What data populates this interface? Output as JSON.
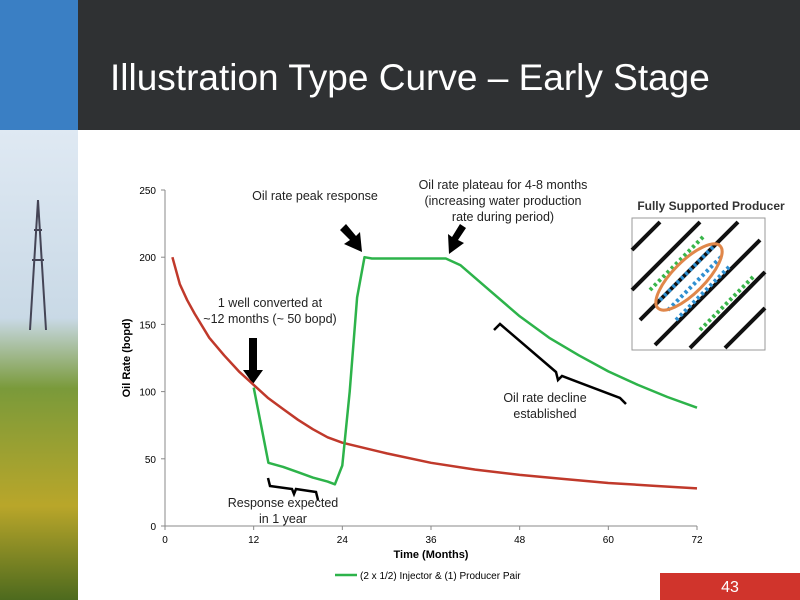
{
  "header": {
    "title": "Illustration Type Curve – Early Stage"
  },
  "chart_data": {
    "type": "line",
    "ylabel": "Oil Rate (bopd)",
    "xlabel": "Time (Months)",
    "xlim": [
      0,
      72
    ],
    "xticks": [
      0,
      12,
      24,
      36,
      48,
      60,
      72
    ],
    "ylim": [
      0,
      250
    ],
    "yticks": [
      0,
      50,
      100,
      150,
      200,
      250
    ],
    "series": [
      {
        "color": "#c0392b",
        "x": [
          1,
          2,
          3,
          4,
          6,
          8,
          10,
          12,
          14,
          16,
          18,
          20,
          22,
          24,
          30,
          36,
          42,
          48,
          54,
          60,
          66,
          72
        ],
        "values": [
          200,
          180,
          168,
          158,
          140,
          127,
          115,
          105,
          95,
          87,
          79,
          72,
          66,
          62,
          54,
          47,
          42,
          38,
          35,
          32,
          30,
          28
        ]
      },
      {
        "name": "(2 x 1/2) Injector & (1) Producer Pair",
        "color": "#2db34a",
        "x": [
          12,
          13,
          14,
          16,
          18,
          20,
          22,
          23,
          24,
          25,
          26,
          27,
          28,
          36,
          38,
          40,
          44,
          48,
          52,
          56,
          60,
          64,
          68,
          72
        ],
        "values": [
          103,
          75,
          47,
          44,
          40,
          36,
          33,
          31,
          45,
          100,
          170,
          200,
          199,
          199,
          199,
          194,
          175,
          156,
          140,
          127,
          115,
          105,
          96,
          88
        ]
      }
    ],
    "annotations": [
      [
        "Oil rate peak response"
      ],
      [
        "Oil rate plateau for 4-8 months",
        "(increasing water production",
        "rate during period)"
      ],
      [
        "1 well converted at",
        "~12 months (~ 50 bopd)"
      ],
      [
        "Oil rate decline",
        "established"
      ],
      [
        "Response expected",
        "in 1 year"
      ]
    ]
  },
  "inset": {
    "title": "Fully Supported Producer"
  },
  "page_number": "43"
}
